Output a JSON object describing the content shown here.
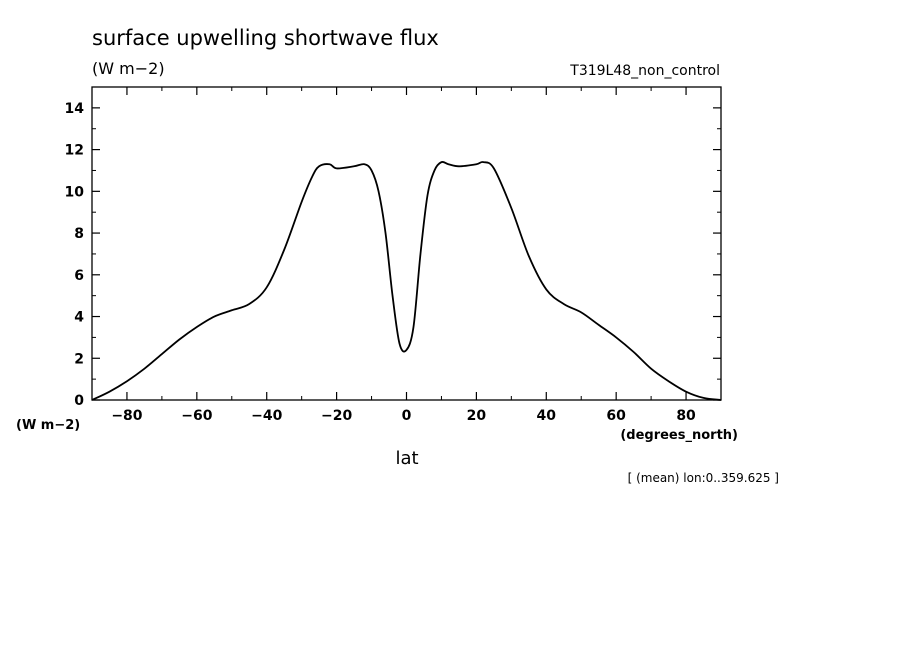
{
  "chart_data": {
    "type": "line",
    "title": "surface upwelling shortwave flux",
    "units_top": "(W m−2)",
    "run_label": "T319L48_non_control",
    "ylabel": "(W m−2)",
    "xunits": "(degrees_north)",
    "xlabel": "lat",
    "note": "[ (mean) lon:0..359.625 ]",
    "xlim": [
      -90,
      90
    ],
    "ylim": [
      0,
      15
    ],
    "xticks": [
      -80,
      -60,
      -40,
      -20,
      0,
      20,
      40,
      60,
      80
    ],
    "xtick_labels": [
      "−80",
      "−60",
      "−40",
      "−20",
      "0",
      "20",
      "40",
      "60",
      "80"
    ],
    "yticks": [
      0,
      2,
      4,
      6,
      8,
      10,
      12,
      14
    ],
    "ytick_labels": [
      "0",
      "2",
      "4",
      "6",
      "8",
      "10",
      "12",
      "14"
    ],
    "grid": false,
    "line_color": "#000000",
    "series": [
      {
        "x": [
          -90,
          -85,
          -80,
          -75,
          -70,
          -65,
          -60,
          -55,
          -50,
          -45,
          -40,
          -35,
          -30,
          -27,
          -25,
          -22,
          -20,
          -15,
          -12,
          -10,
          -8,
          -6,
          -4,
          -2,
          0,
          2,
          4,
          6,
          8,
          10,
          12,
          15,
          20,
          22,
          25,
          30,
          35,
          40,
          45,
          50,
          55,
          60,
          65,
          70,
          75,
          80,
          85,
          90
        ],
        "y": [
          0.0,
          0.4,
          0.9,
          1.5,
          2.2,
          2.9,
          3.5,
          4.0,
          4.3,
          4.6,
          5.4,
          7.2,
          9.5,
          10.7,
          11.2,
          11.3,
          11.1,
          11.2,
          11.3,
          11.0,
          10.0,
          8.0,
          5.0,
          2.7,
          2.4,
          3.5,
          7.0,
          9.8,
          11.0,
          11.4,
          11.3,
          11.2,
          11.3,
          11.4,
          11.1,
          9.2,
          6.9,
          5.3,
          4.6,
          4.2,
          3.6,
          3.0,
          2.3,
          1.5,
          0.9,
          0.4,
          0.1,
          0.0
        ]
      }
    ]
  }
}
